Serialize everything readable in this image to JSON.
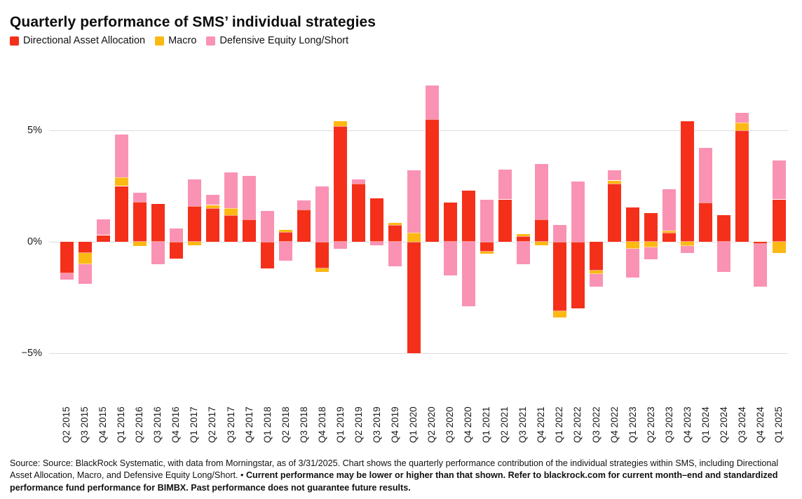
{
  "header": {
    "title": "Quarterly performance of SMS’ individual strategies"
  },
  "chart_data": {
    "type": "bar",
    "stacked": true,
    "title": "Quarterly performance of SMS’ individual strategies",
    "grid": true,
    "legend_position": "top-left",
    "ylim": [
      -6,
      7.5
    ],
    "yticks": [
      5,
      0,
      -5
    ],
    "ytick_labels": [
      "5%",
      "0%",
      "−5%"
    ],
    "xlabel": "",
    "ylabel": "",
    "categories": [
      "Q2 2015",
      "Q3 2015",
      "Q4 2015",
      "Q1 2016",
      "Q2 2016",
      "Q3 2016",
      "Q4 2016",
      "Q1 2017",
      "Q2 2017",
      "Q3 2017",
      "Q4 2017",
      "Q1 2018",
      "Q2 2018",
      "Q3 2018",
      "Q4 2018",
      "Q1 2019",
      "Q2 2019",
      "Q3 2019",
      "Q4 2019",
      "Q1 2020",
      "Q2 2020",
      "Q3 2020",
      "Q4 2020",
      "Q1 2021",
      "Q2 2021",
      "Q3 2021",
      "Q4 2021",
      "Q1 2022",
      "Q2 2022",
      "Q3 2022",
      "Q4 2022",
      "Q1 2023",
      "Q2 2023",
      "Q3 2023",
      "Q4 2023",
      "Q1 2024",
      "Q2 2024",
      "Q3 2024",
      "Q4 2024",
      "Q1 2025"
    ],
    "series": [
      {
        "name": "Directional Asset Allocation",
        "key": "directional-asset-allocation",
        "color": "#f4301b",
        "values": [
          -1.4,
          -0.5,
          0.3,
          2.5,
          1.8,
          1.7,
          -0.75,
          1.6,
          1.5,
          1.2,
          1.0,
          -1.2,
          0.45,
          1.45,
          -1.2,
          5.2,
          2.6,
          1.95,
          0.75,
          -5.0,
          5.5,
          1.75,
          2.3,
          -0.45,
          1.9,
          0.25,
          1.0,
          -3.1,
          -3.0,
          -1.3,
          2.6,
          1.55,
          1.3,
          0.4,
          5.4,
          1.75,
          1.2,
          5.0,
          -0.1,
          1.9
        ]
      },
      {
        "name": "Macro",
        "key": "macro",
        "color": "#fcb813",
        "values": [
          0,
          -0.5,
          0,
          0.4,
          -0.2,
          0,
          0,
          -0.15,
          0.15,
          0.3,
          0,
          0,
          0.1,
          0,
          -0.15,
          0.2,
          0,
          0,
          0.1,
          0.4,
          0,
          0,
          0,
          -0.1,
          0,
          0.1,
          -0.15,
          -0.3,
          0,
          -0.15,
          0.15,
          -0.3,
          -0.25,
          0.1,
          -0.2,
          0,
          0,
          0.35,
          0,
          -0.5
        ]
      },
      {
        "name": "Defensive Equity Long/Short",
        "key": "defensive-equity-long-short",
        "color": "#fa92b4",
        "values": [
          -0.3,
          -0.9,
          0.7,
          1.9,
          0.4,
          -1.0,
          0.6,
          1.2,
          0.45,
          1.6,
          1.95,
          1.4,
          -0.85,
          0.4,
          2.5,
          -0.3,
          0.2,
          -0.15,
          -1.1,
          2.8,
          1.5,
          -1.5,
          -2.9,
          1.9,
          1.35,
          -1.0,
          2.5,
          0.75,
          2.7,
          -0.55,
          0.45,
          -1.3,
          -0.55,
          1.85,
          -0.3,
          2.45,
          -1.35,
          0.45,
          -1.9,
          1.75
        ]
      }
    ]
  },
  "footer": {
    "text_normal": "Source: Source: BlackRock Systematic, with data from Morningstar, as of 3/31/2025. Chart shows the quarterly performance contribution of the individual strategies within SMS, including Directional Asset Allocation, Macro, and Defensive Equity Long/Short. • ",
    "text_bold": "Current performance may be lower or higher than that shown. Refer to blackrock.com for current month–end and standardized performance fund performance for BIMBX. Past performance does not guarantee future results."
  }
}
